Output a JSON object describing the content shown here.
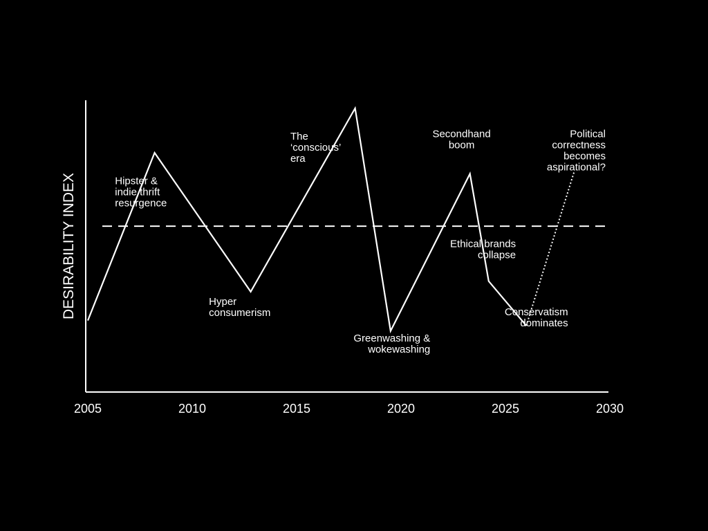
{
  "chart_data": {
    "type": "line",
    "title": "",
    "xlabel": "",
    "ylabel": "DESIRABILITY INDEX",
    "xlim": [
      2005,
      2030
    ],
    "ylim": [
      0,
      100
    ],
    "x_ticks": [
      "2005",
      "2010",
      "2015",
      "2020",
      "2025",
      "2030"
    ],
    "grid": false,
    "legend": "none",
    "threshold": {
      "y": 53,
      "style": "dashed"
    },
    "series": [
      {
        "style": "solid",
        "points": [
          {
            "x": 2005.0,
            "y": 17
          },
          {
            "x": 2008.2,
            "y": 81
          },
          {
            "x": 2012.8,
            "y": 28
          },
          {
            "x": 2017.8,
            "y": 98
          },
          {
            "x": 2019.5,
            "y": 13
          },
          {
            "x": 2023.3,
            "y": 73
          },
          {
            "x": 2024.2,
            "y": 32
          },
          {
            "x": 2026.0,
            "y": 15
          }
        ]
      },
      {
        "style": "dotted",
        "points": [
          {
            "x": 2026.0,
            "y": 15
          },
          {
            "x": 2028.3,
            "y": 74
          }
        ]
      }
    ],
    "annotations": [
      {
        "lines": [
          "Hipster &",
          "indie thrift",
          "resurgence"
        ],
        "x": 2006.3,
        "y": 69,
        "anchor": "start"
      },
      {
        "lines": [
          "Hyper",
          "consumerism"
        ],
        "x": 2010.8,
        "y": 23,
        "anchor": "start"
      },
      {
        "lines": [
          "The",
          "‘conscious’",
          "era"
        ],
        "x": 2014.7,
        "y": 86,
        "anchor": "start"
      },
      {
        "lines": [
          "Greenwashing &",
          "wokewashing"
        ],
        "x": 2021.4,
        "y": 9,
        "anchor": "end"
      },
      {
        "lines": [
          "Secondhand",
          "boom"
        ],
        "x": 2022.9,
        "y": 87,
        "anchor": "middle"
      },
      {
        "lines": [
          "Ethical brands",
          "collapse"
        ],
        "x": 2025.5,
        "y": 45,
        "anchor": "end"
      },
      {
        "lines": [
          "Conservatism",
          "dominates"
        ],
        "x": 2028.0,
        "y": 19,
        "anchor": "end"
      },
      {
        "lines": [
          "Political",
          "correctness",
          "becomes",
          "aspirational?"
        ],
        "x": 2029.8,
        "y": 87,
        "anchor": "end"
      }
    ]
  }
}
